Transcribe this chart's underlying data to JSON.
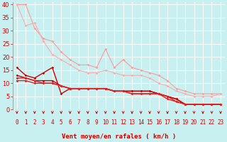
{
  "xlabel": "Vent moyen/en rafales ( km/h )",
  "background_color": "#c8f0f0",
  "grid_color": "#ffffff",
  "x_ticks": [
    0,
    1,
    2,
    3,
    4,
    5,
    6,
    7,
    8,
    9,
    10,
    11,
    12,
    13,
    14,
    15,
    16,
    17,
    18,
    19,
    20,
    21,
    22,
    23
  ],
  "xlim": [
    -0.5,
    23.5
  ],
  "ylim": [
    0,
    41
  ],
  "y_ticks": [
    0,
    5,
    10,
    15,
    20,
    25,
    30,
    35,
    40
  ],
  "series": [
    {
      "x": [
        0,
        1,
        2,
        3,
        4,
        5,
        6,
        7,
        8,
        9,
        10,
        11,
        12,
        13,
        14,
        15,
        16,
        17,
        18,
        19,
        20,
        21,
        22,
        23
      ],
      "y": [
        40,
        40,
        31,
        27,
        26,
        22,
        19,
        17,
        17,
        16,
        23,
        16,
        19,
        16,
        15,
        14,
        13,
        11,
        8,
        7,
        6,
        6,
        6,
        6
      ],
      "color": "#ff9999",
      "lw": 0.8,
      "marker": "D",
      "ms": 1.8
    },
    {
      "x": [
        0,
        1,
        2,
        3,
        4,
        5,
        6,
        7,
        8,
        9,
        10,
        11,
        12,
        13,
        14,
        15,
        16,
        17,
        18,
        19,
        20,
        21,
        22,
        23
      ],
      "y": [
        40,
        32,
        33,
        26,
        21,
        19,
        17,
        15,
        14,
        14,
        15,
        14,
        13,
        13,
        13,
        12,
        10,
        9,
        7,
        6,
        5,
        5,
        5,
        6
      ],
      "color": "#ffaaaa",
      "lw": 0.8,
      "marker": "D",
      "ms": 1.8
    },
    {
      "x": [
        0,
        1,
        2,
        3,
        4,
        5,
        6,
        7,
        8,
        9,
        10,
        11,
        12,
        13,
        14,
        15,
        16,
        17,
        18,
        19,
        20,
        21,
        22,
        23
      ],
      "y": [
        16,
        13,
        12,
        14,
        16,
        6,
        8,
        8,
        8,
        8,
        8,
        7,
        7,
        7,
        7,
        7,
        6,
        5,
        4,
        2,
        2,
        2,
        2,
        2
      ],
      "color": "#cc0000",
      "lw": 1.0,
      "marker": "D",
      "ms": 1.8
    },
    {
      "x": [
        0,
        1,
        2,
        3,
        4,
        5,
        6,
        7,
        8,
        9,
        10,
        11,
        12,
        13,
        14,
        15,
        16,
        17,
        18,
        19,
        20,
        21,
        22,
        23
      ],
      "y": [
        13,
        12,
        11,
        11,
        11,
        9,
        8,
        8,
        8,
        8,
        8,
        7,
        7,
        7,
        7,
        7,
        6,
        5,
        4,
        2,
        2,
        2,
        2,
        2
      ],
      "color": "#cc0000",
      "lw": 1.0,
      "marker": "D",
      "ms": 1.8
    },
    {
      "x": [
        0,
        1,
        2,
        3,
        4,
        5,
        6,
        7,
        8,
        9,
        10,
        11,
        12,
        13,
        14,
        15,
        16,
        17,
        18,
        19,
        20,
        21,
        22,
        23
      ],
      "y": [
        12,
        12,
        11,
        10,
        10,
        9,
        8,
        8,
        8,
        8,
        8,
        7,
        7,
        6,
        6,
        6,
        6,
        5,
        3,
        2,
        2,
        2,
        2,
        2
      ],
      "color": "#dd2222",
      "lw": 1.0,
      "marker": "D",
      "ms": 1.8
    },
    {
      "x": [
        0,
        1,
        2,
        3,
        4,
        5,
        6,
        7,
        8,
        9,
        10,
        11,
        12,
        13,
        14,
        15,
        16,
        17,
        18,
        19,
        20,
        21,
        22,
        23
      ],
      "y": [
        11,
        11,
        10,
        10,
        10,
        9,
        8,
        8,
        8,
        8,
        8,
        7,
        7,
        6,
        6,
        6,
        6,
        4,
        3,
        2,
        2,
        2,
        2,
        2
      ],
      "color": "#dd2222",
      "lw": 1.0,
      "marker": "D",
      "ms": 1.8
    }
  ],
  "arrow_color": "#cc0000",
  "xlabel_color": "#cc0000",
  "xlabel_fontsize": 6.5,
  "tick_fontsize": 5.5,
  "ytick_fontsize": 6.0
}
